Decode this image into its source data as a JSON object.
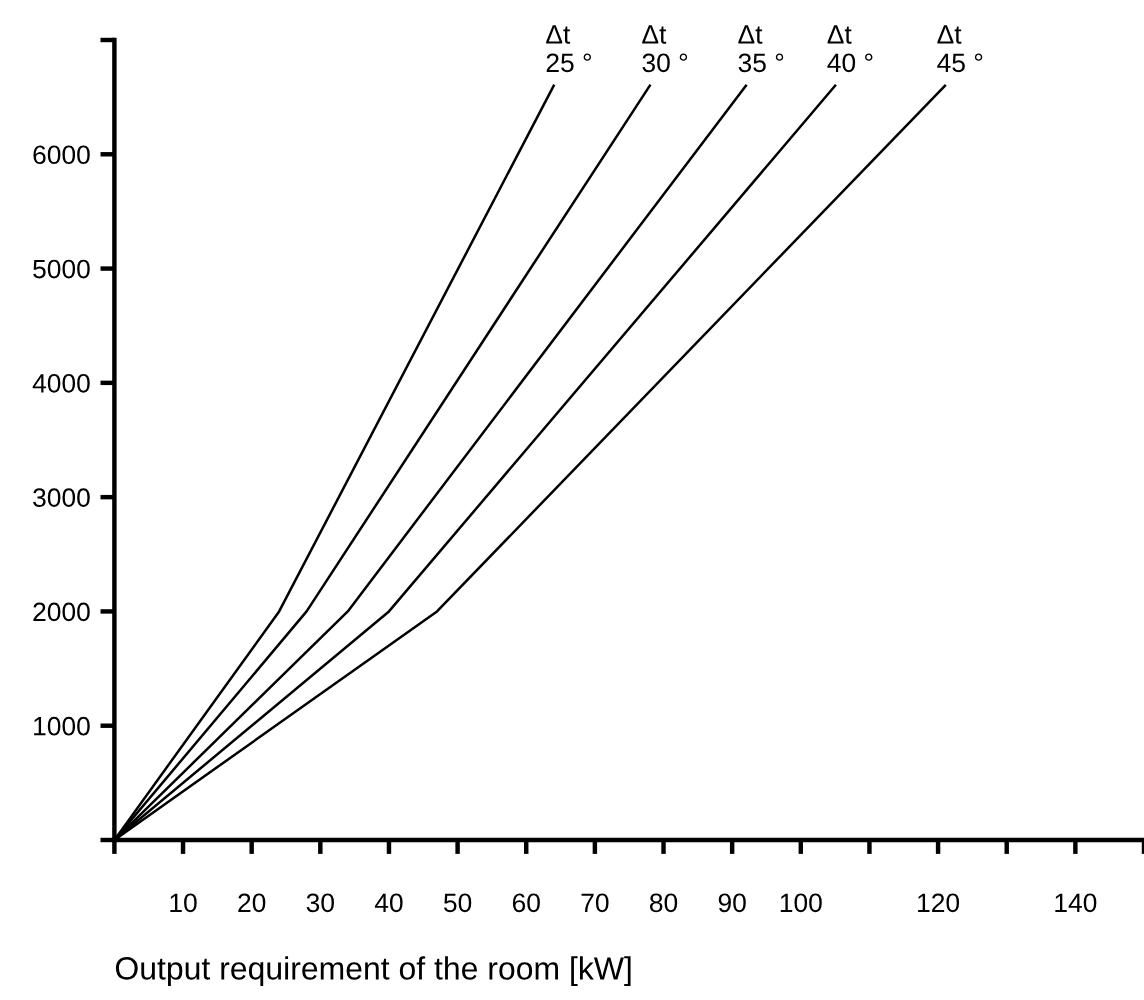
{
  "chart_data": {
    "type": "line",
    "xlabel": "Output requirement of the room [kW]",
    "xlim": [
      0,
      150
    ],
    "ylim": [
      0,
      7000
    ],
    "xticks": [
      {
        "value": 0,
        "label": null
      },
      10,
      20,
      30,
      40,
      50,
      60,
      70,
      80,
      90,
      100,
      {
        "value": 110,
        "label": null
      },
      120,
      {
        "value": 130,
        "label": null
      },
      140,
      {
        "value": 150,
        "label": null
      }
    ],
    "yticks": [
      {
        "value": 0,
        "label": null
      },
      1000,
      2000,
      3000,
      4000,
      5000,
      6000,
      {
        "value": 7000,
        "label": null
      }
    ],
    "grid": false,
    "legend": false,
    "marker": "none",
    "line_style": "solid",
    "series": [
      {
        "name": "Δt\n25 °",
        "color": "#000000",
        "x": [
          0,
          24,
          64
        ],
        "values": [
          0,
          2000,
          6600
        ]
      },
      {
        "name": "Δt\n30 °",
        "color": "#000000",
        "x": [
          0,
          28,
          78
        ],
        "values": [
          0,
          2000,
          6600
        ]
      },
      {
        "name": "Δt\n35 °",
        "color": "#000000",
        "x": [
          0,
          34,
          92
        ],
        "values": [
          0,
          2000,
          6600
        ]
      },
      {
        "name": "Δt\n40 °",
        "color": "#000000",
        "x": [
          0,
          40,
          105
        ],
        "values": [
          0,
          2000,
          6600
        ]
      },
      {
        "name": "Δt\n45 °",
        "color": "#000000",
        "x": [
          0,
          47,
          121
        ],
        "values": [
          0,
          2000,
          6600
        ]
      }
    ]
  }
}
